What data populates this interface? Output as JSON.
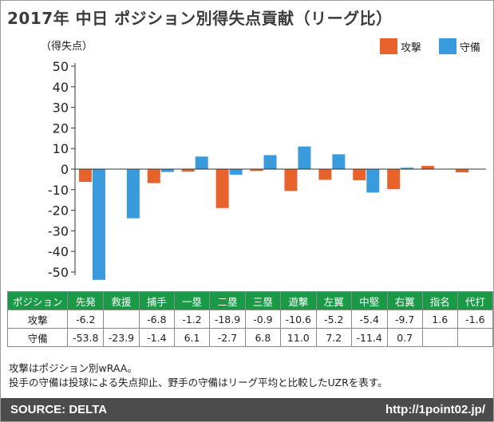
{
  "title": "2017年 中日 ポジション別得失点貢献（リーグ比）",
  "unit_label": "（得失点）",
  "colors": {
    "offense": "#e8622c",
    "defense": "#3a9bdc",
    "header_bg": "#1a9a47",
    "footer_bg": "#4c4c4c"
  },
  "chart_data": {
    "type": "bar",
    "title": "2017年 中日 ポジション別得失点貢献（リーグ比）",
    "ylabel": "（得失点）",
    "xlabel": "",
    "ylim": [
      -55,
      50
    ],
    "yticks": [
      50,
      40,
      30,
      20,
      10,
      0,
      -10,
      -20,
      -30,
      -40,
      -50
    ],
    "categories": [
      "先発",
      "救援",
      "捕手",
      "一塁",
      "二塁",
      "三塁",
      "遊撃",
      "左翼",
      "中堅",
      "右翼",
      "指名",
      "代打"
    ],
    "series": [
      {
        "name": "攻撃",
        "values": [
          -6.2,
          null,
          -6.8,
          -1.2,
          -18.9,
          -0.9,
          -10.6,
          -5.2,
          -5.4,
          -9.7,
          1.6,
          -1.6
        ]
      },
      {
        "name": "守備",
        "values": [
          -53.8,
          -23.9,
          -1.4,
          6.1,
          -2.7,
          6.8,
          11.0,
          7.2,
          -11.4,
          0.7,
          null,
          null
        ]
      }
    ],
    "legend": [
      "攻撃",
      "守備"
    ],
    "legend_position": "top-right"
  },
  "table": {
    "header": [
      "ポジション",
      "先発",
      "救援",
      "捕手",
      "一塁",
      "二塁",
      "三塁",
      "遊撃",
      "左翼",
      "中堅",
      "右翼",
      "指名",
      "代打"
    ],
    "rows": [
      {
        "label": "攻撃",
        "cells": [
          "-6.2",
          "",
          "-6.8",
          "-1.2",
          "-18.9",
          "-0.9",
          "-10.6",
          "-5.2",
          "-5.4",
          "-9.7",
          "1.6",
          "-1.6"
        ]
      },
      {
        "label": "守備",
        "cells": [
          "-53.8",
          "-23.9",
          "-1.4",
          "6.1",
          "-2.7",
          "6.8",
          "11.0",
          "7.2",
          "-11.4",
          "0.7",
          "",
          ""
        ]
      }
    ]
  },
  "notes": [
    "攻撃はポジション別wRAA。",
    "投手の守備は投球による失点抑止、野手の守備はリーグ平均と比較したUZRを表す。"
  ],
  "footer": {
    "source": "SOURCE: DELTA",
    "url": "http://1point02.jp/"
  }
}
